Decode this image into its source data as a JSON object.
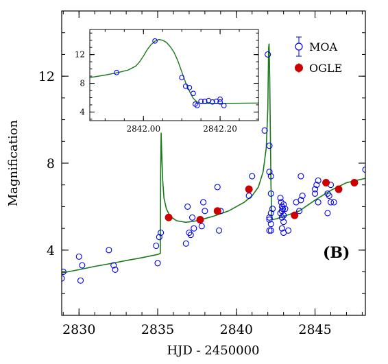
{
  "chart_data": [
    {
      "type": "scatter",
      "panel_label": "(B)",
      "xlabel": "HJD - 2450000",
      "ylabel": "Magnification",
      "xlim": [
        2828.9,
        2848.2
      ],
      "ylim": [
        1.0,
        15.0
      ],
      "xticks": [
        2830,
        2835,
        2840,
        2845
      ],
      "yticks": [
        4,
        8,
        12
      ],
      "legend_position": "top-right",
      "colors": {
        "moa": "#0000ee",
        "ogle": "#cc0000",
        "model": "#1a7a1a"
      },
      "series": [
        {
          "name": "MOA",
          "marker": "open-circle",
          "points": [
            [
              2828.9,
              2.7
            ],
            [
              2829.0,
              3.0
            ],
            [
              2830.0,
              3.7
            ],
            [
              2830.1,
              2.6
            ],
            [
              2830.2,
              3.3
            ],
            [
              2831.9,
              4.0
            ],
            [
              2832.2,
              3.3
            ],
            [
              2832.3,
              3.1
            ],
            [
              2834.9,
              4.2
            ],
            [
              2835.0,
              3.4
            ],
            [
              2835.1,
              4.6
            ],
            [
              2835.2,
              4.8
            ],
            [
              2836.8,
              4.3
            ],
            [
              2836.9,
              6.0
            ],
            [
              2837.0,
              4.8
            ],
            [
              2837.1,
              4.7
            ],
            [
              2837.2,
              5.5
            ],
            [
              2837.3,
              5.0
            ],
            [
              2837.8,
              5.1
            ],
            [
              2837.9,
              6.2
            ],
            [
              2838.0,
              5.8
            ],
            [
              2838.8,
              6.9
            ],
            [
              2838.9,
              4.9
            ],
            [
              2839.0,
              5.8
            ],
            [
              2840.8,
              6.5
            ],
            [
              2841.0,
              7.4
            ],
            [
              2841.8,
              9.5
            ],
            [
              2842.0,
              13.0
            ],
            [
              2842.1,
              8.8
            ],
            [
              2842.1,
              7.6
            ],
            [
              2842.2,
              7.4
            ],
            [
              2842.2,
              6.6
            ],
            [
              2842.1,
              5.5
            ],
            [
              2842.2,
              5.7
            ],
            [
              2842.3,
              5.9
            ],
            [
              2842.1,
              5.4
            ],
            [
              2842.2,
              5.2
            ],
            [
              2842.1,
              4.9
            ],
            [
              2842.2,
              4.9
            ],
            [
              2842.8,
              6.4
            ],
            [
              2842.85,
              6.2
            ],
            [
              2842.9,
              6.0
            ],
            [
              2842.9,
              5.8
            ],
            [
              2842.95,
              5.9
            ],
            [
              2843.0,
              6.1
            ],
            [
              2842.8,
              5.7
            ],
            [
              2842.9,
              5.5
            ],
            [
              2843.0,
              5.6
            ],
            [
              2843.0,
              5.3
            ],
            [
              2842.9,
              5.0
            ],
            [
              2843.0,
              4.8
            ],
            [
              2843.1,
              5.9
            ],
            [
              2843.3,
              4.9
            ],
            [
              2843.8,
              6.2
            ],
            [
              2844.0,
              5.8
            ],
            [
              2844.2,
              6.5
            ],
            [
              2844.1,
              6.3
            ],
            [
              2844.1,
              7.4
            ],
            [
              2845.0,
              6.8
            ],
            [
              2845.0,
              6.6
            ],
            [
              2845.1,
              7.0
            ],
            [
              2845.2,
              6.2
            ],
            [
              2845.2,
              7.2
            ],
            [
              2845.7,
              7.1
            ],
            [
              2845.8,
              5.7
            ],
            [
              2845.8,
              6.6
            ],
            [
              2845.9,
              6.5
            ],
            [
              2846.0,
              6.2
            ],
            [
              2846.0,
              7.0
            ],
            [
              2846.2,
              6.2
            ],
            [
              2848.2,
              7.7
            ]
          ]
        },
        {
          "name": "OGLE",
          "marker": "filled-circle",
          "points": [
            [
              2835.7,
              5.5
            ],
            [
              2837.7,
              5.4
            ],
            [
              2838.8,
              5.8
            ],
            [
              2840.8,
              6.8
            ],
            [
              2843.7,
              5.6
            ],
            [
              2845.7,
              7.1
            ],
            [
              2846.5,
              6.8
            ],
            [
              2847.5,
              7.1
            ]
          ]
        },
        {
          "name": "model",
          "type": "line",
          "points": [
            [
              2828.9,
              2.95
            ],
            [
              2830.0,
              3.1
            ],
            [
              2831.0,
              3.25
            ],
            [
              2832.0,
              3.38
            ],
            [
              2833.0,
              3.52
            ],
            [
              2834.0,
              3.65
            ],
            [
              2835.0,
              3.8
            ],
            [
              2835.17,
              3.85
            ],
            [
              2835.19,
              7.6
            ],
            [
              2835.22,
              9.4
            ],
            [
              2835.26,
              8.4
            ],
            [
              2835.32,
              7.2
            ],
            [
              2835.4,
              6.4
            ],
            [
              2835.55,
              5.9
            ],
            [
              2835.8,
              5.55
            ],
            [
              2836.2,
              5.35
            ],
            [
              2836.8,
              5.28
            ],
            [
              2837.5,
              5.35
            ],
            [
              2838.5,
              5.55
            ],
            [
              2839.5,
              5.8
            ],
            [
              2840.0,
              6.0
            ],
            [
              2840.5,
              6.2
            ],
            [
              2841.0,
              6.5
            ],
            [
              2841.4,
              6.9
            ],
            [
              2841.7,
              7.6
            ],
            [
              2841.9,
              8.7
            ],
            [
              2842.0,
              10.5
            ],
            [
              2842.05,
              13.3
            ],
            [
              2842.08,
              13.5
            ],
            [
              2842.12,
              12.0
            ],
            [
              2842.16,
              9.5
            ],
            [
              2842.2,
              7.0
            ],
            [
              2842.25,
              5.6
            ],
            [
              2842.3,
              5.4
            ],
            [
              2842.6,
              5.45
            ],
            [
              2843.0,
              5.55
            ],
            [
              2844.0,
              5.8
            ],
            [
              2845.0,
              6.3
            ],
            [
              2846.0,
              6.75
            ],
            [
              2847.0,
              7.1
            ],
            [
              2848.2,
              7.3
            ]
          ]
        }
      ]
    },
    {
      "type": "scatter",
      "inset": true,
      "xlim": [
        2841.86,
        2842.3
      ],
      "ylim": [
        2.8,
        15.5
      ],
      "xticks": [
        2842.0,
        2842.2
      ],
      "xtick_labels": [
        "2842.00",
        "2842.20"
      ],
      "yticks": [
        4,
        8,
        12
      ],
      "series": [
        {
          "name": "MOA",
          "marker": "open-circle",
          "points": [
            [
              2841.93,
              9.5
            ],
            [
              2842.03,
              13.9
            ],
            [
              2842.1,
              8.8
            ],
            [
              2842.11,
              7.6
            ],
            [
              2842.12,
              7.4
            ],
            [
              2842.13,
              6.6
            ],
            [
              2842.135,
              5.1
            ],
            [
              2842.14,
              4.9
            ],
            [
              2842.15,
              5.5
            ],
            [
              2842.16,
              5.5
            ],
            [
              2842.17,
              5.6
            ],
            [
              2842.18,
              5.4
            ],
            [
              2842.19,
              5.5
            ],
            [
              2842.2,
              5.4
            ],
            [
              2842.2,
              5.8
            ],
            [
              2842.21,
              4.9
            ]
          ]
        },
        {
          "name": "model",
          "type": "line",
          "points": [
            [
              2841.86,
              8.8
            ],
            [
              2841.9,
              9.15
            ],
            [
              2841.93,
              9.45
            ],
            [
              2841.96,
              9.85
            ],
            [
              2841.98,
              10.4
            ],
            [
              2841.99,
              11.0
            ],
            [
              2842.0,
              11.8
            ],
            [
              2842.01,
              12.7
            ],
            [
              2842.02,
              13.4
            ],
            [
              2842.03,
              13.85
            ],
            [
              2842.04,
              14.1
            ],
            [
              2842.05,
              14.0
            ],
            [
              2842.06,
              13.7
            ],
            [
              2842.07,
              13.1
            ],
            [
              2842.08,
              12.3
            ],
            [
              2842.09,
              11.1
            ],
            [
              2842.1,
              9.6
            ],
            [
              2842.11,
              8.1
            ],
            [
              2842.12,
              6.9
            ],
            [
              2842.13,
              5.9
            ],
            [
              2842.14,
              5.4
            ],
            [
              2842.15,
              5.2
            ],
            [
              2842.2,
              5.2
            ],
            [
              2842.3,
              5.25
            ]
          ]
        }
      ]
    }
  ]
}
